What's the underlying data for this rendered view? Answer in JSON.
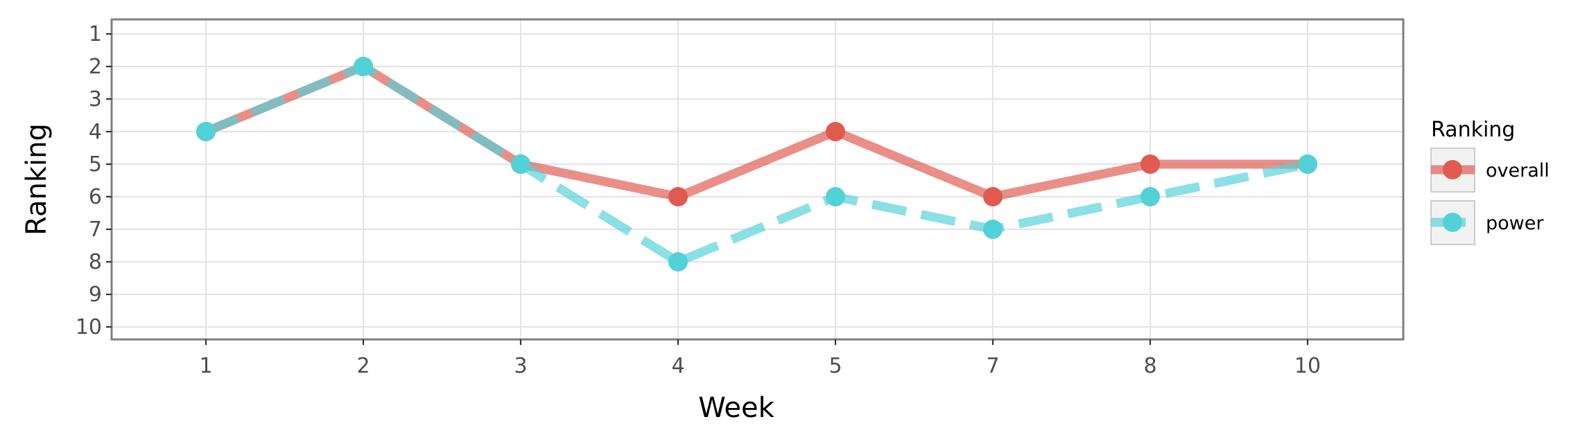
{
  "chart_data": {
    "type": "line",
    "xlabel": "Week",
    "ylabel": "Ranking",
    "x": [
      "1",
      "2",
      "3",
      "4",
      "5",
      "7",
      "8",
      "10"
    ],
    "yticks": [
      "1",
      "2",
      "3",
      "4",
      "5",
      "6",
      "7",
      "8",
      "9",
      "10"
    ],
    "ylim": [
      1,
      10
    ],
    "y_reversed": true,
    "x_scale": "categorical",
    "grid": true,
    "legend": {
      "title": "Ranking",
      "position": "right"
    },
    "series": [
      {
        "name": "overall",
        "values": [
          4,
          2,
          5,
          6,
          4,
          6,
          5,
          5
        ],
        "color": "#e05a50",
        "line_style": "solid"
      },
      {
        "name": "power",
        "values": [
          4,
          2,
          5,
          8,
          6,
          7,
          6,
          5
        ],
        "color": "#53d1d9",
        "line_style": "dashed"
      }
    ]
  }
}
